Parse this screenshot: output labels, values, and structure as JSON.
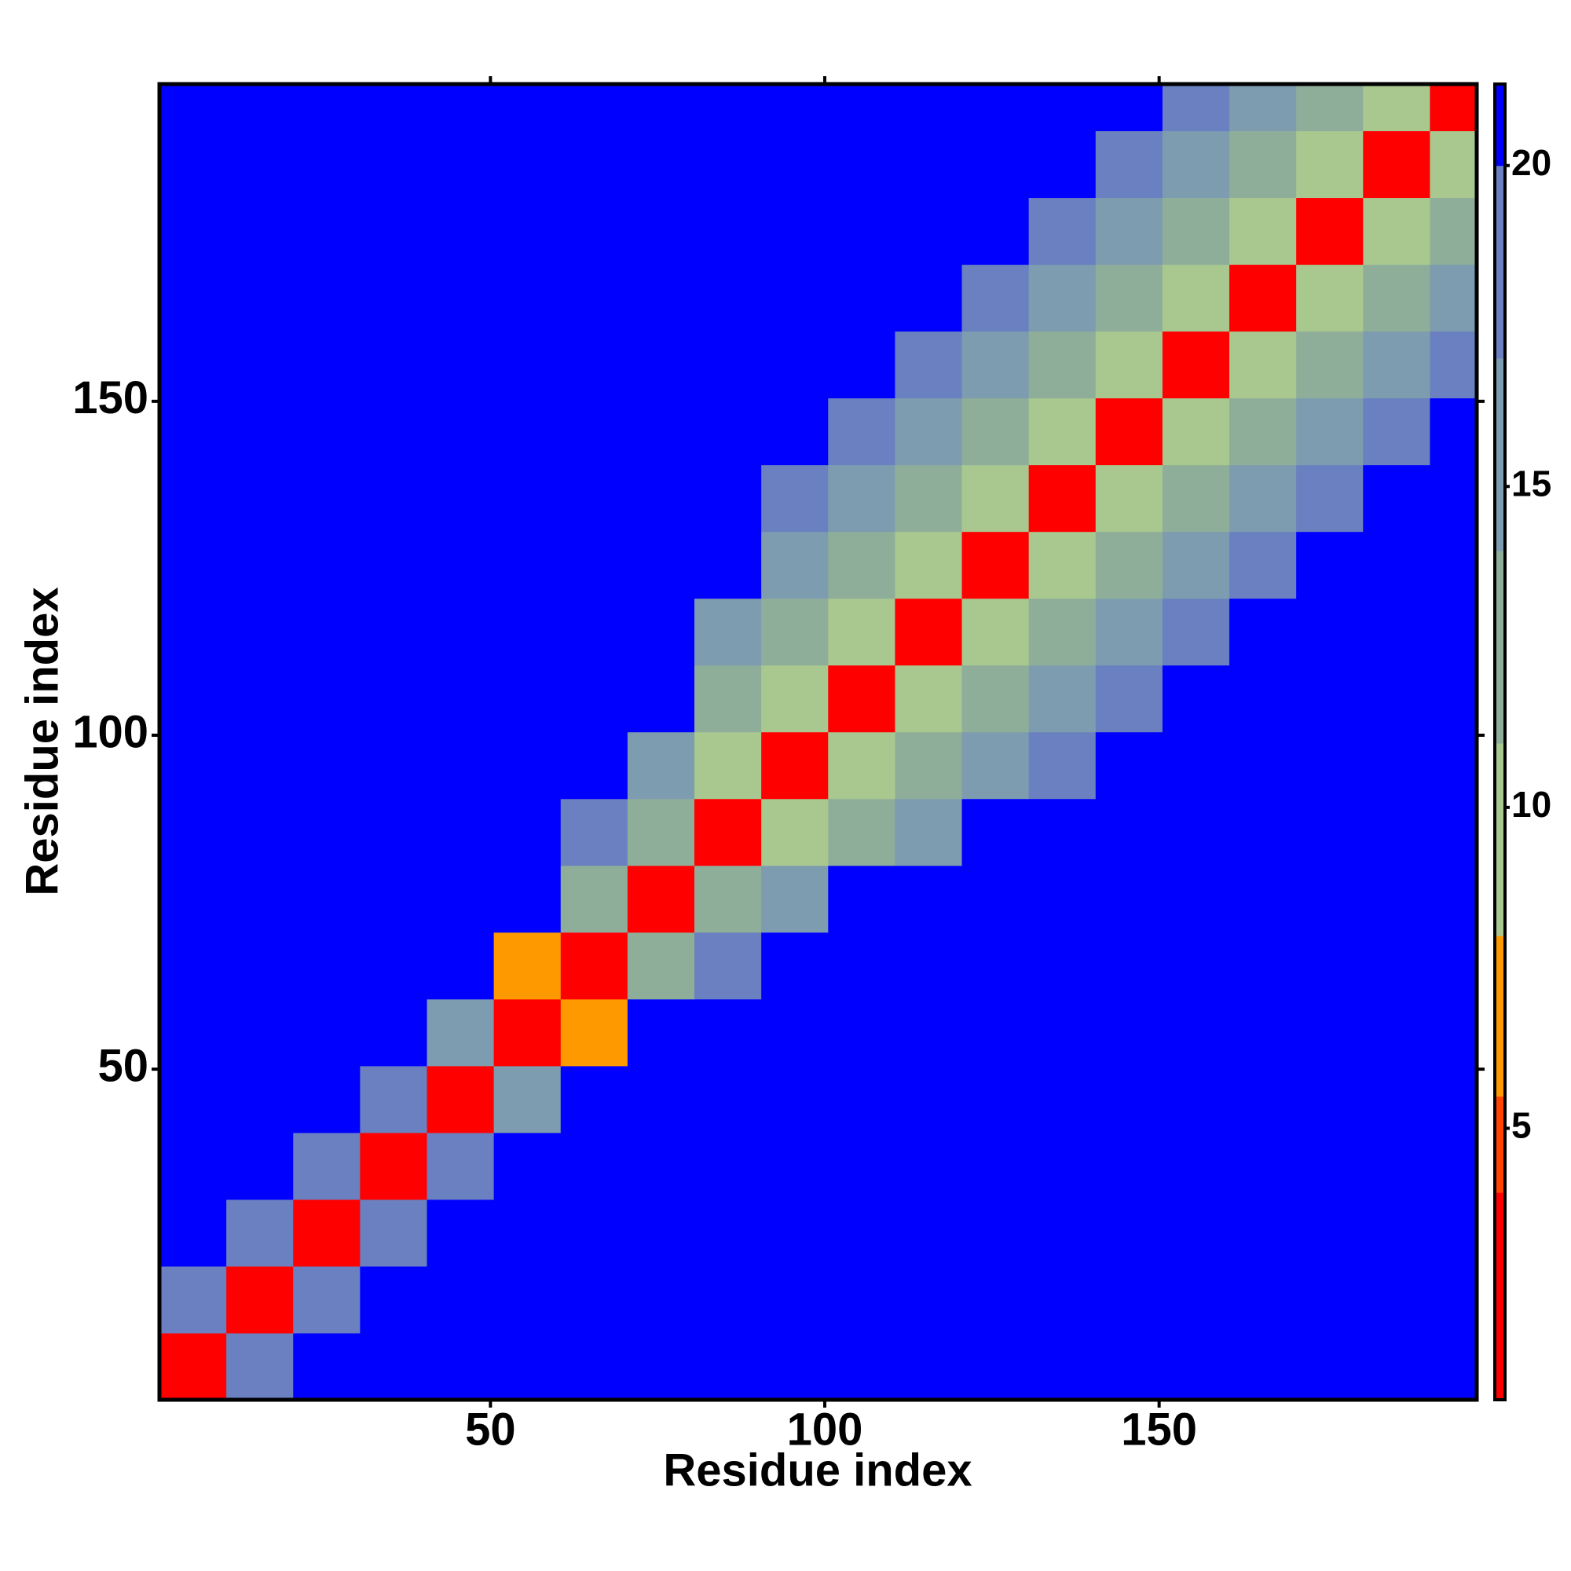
{
  "chart_data": {
    "type": "heatmap",
    "x_label": "Residue index",
    "y_label": "Residue index",
    "xlim": [
      0.5,
      197.5
    ],
    "ylim": [
      0.5,
      197.5
    ],
    "xticks": [
      50,
      100,
      150
    ],
    "yticks": [
      50,
      100,
      150
    ],
    "xbins": [
      0.5,
      10.5,
      20.5,
      30.5,
      40.5,
      50.5,
      60.5,
      70.5,
      80.5,
      90.5,
      100.5,
      110.5,
      120.5,
      130.5,
      140.5,
      150.5,
      160.5,
      170.5,
      180.5,
      190.5,
      197.5
    ],
    "ybins": [
      0.5,
      10.5,
      20.5,
      30.5,
      40.5,
      50.5,
      60.5,
      70.5,
      80.5,
      90.5,
      100.5,
      110.5,
      120.5,
      130.5,
      140.5,
      150.5,
      160.5,
      170.5,
      180.5,
      190.5,
      197.5
    ],
    "z": [
      [
        4,
        18,
        21,
        21,
        21,
        21,
        21,
        21,
        21,
        21,
        21,
        21,
        21,
        21,
        21,
        21,
        21,
        21,
        21,
        21
      ],
      [
        18,
        4,
        18,
        21,
        21,
        21,
        21,
        21,
        21,
        21,
        21,
        21,
        21,
        21,
        21,
        21,
        21,
        21,
        21,
        21
      ],
      [
        21,
        18,
        4,
        18,
        21,
        21,
        21,
        21,
        21,
        21,
        21,
        21,
        21,
        21,
        21,
        21,
        21,
        21,
        21,
        21
      ],
      [
        21,
        21,
        18,
        4,
        18,
        21,
        21,
        21,
        21,
        21,
        21,
        21,
        21,
        21,
        21,
        21,
        21,
        21,
        21,
        21
      ],
      [
        21,
        21,
        21,
        18,
        4,
        15,
        21,
        21,
        21,
        21,
        21,
        21,
        21,
        21,
        21,
        21,
        21,
        21,
        21,
        21
      ],
      [
        21,
        21,
        21,
        21,
        15,
        4,
        8,
        21,
        21,
        21,
        21,
        21,
        21,
        21,
        21,
        21,
        21,
        21,
        21,
        21
      ],
      [
        21,
        21,
        21,
        21,
        21,
        8,
        4,
        14,
        18,
        21,
        21,
        21,
        21,
        21,
        21,
        21,
        21,
        21,
        21,
        21
      ],
      [
        21,
        21,
        21,
        21,
        21,
        21,
        14,
        4,
        12,
        16,
        21,
        21,
        21,
        21,
        21,
        21,
        21,
        21,
        21,
        21
      ],
      [
        21,
        21,
        21,
        21,
        21,
        21,
        18,
        12,
        4,
        10,
        14,
        17,
        21,
        21,
        21,
        21,
        21,
        21,
        21,
        21
      ],
      [
        21,
        21,
        21,
        21,
        21,
        21,
        21,
        16,
        10,
        4,
        10,
        14,
        17,
        19,
        21,
        21,
        21,
        21,
        21,
        21
      ],
      [
        21,
        21,
        21,
        21,
        21,
        21,
        21,
        21,
        14,
        10,
        4,
        10,
        14,
        17,
        19,
        21,
        21,
        21,
        21,
        21
      ],
      [
        21,
        21,
        21,
        21,
        21,
        21,
        21,
        21,
        17,
        14,
        10,
        4,
        10,
        14,
        17,
        19,
        21,
        21,
        21,
        21
      ],
      [
        21,
        21,
        21,
        21,
        21,
        21,
        21,
        21,
        21,
        17,
        14,
        10,
        4,
        10,
        14,
        17,
        19,
        21,
        21,
        21
      ],
      [
        21,
        21,
        21,
        21,
        21,
        21,
        21,
        21,
        21,
        19,
        17,
        14,
        10,
        4,
        10,
        14,
        17,
        19,
        21,
        21
      ],
      [
        21,
        21,
        21,
        21,
        21,
        21,
        21,
        21,
        21,
        21,
        19,
        17,
        14,
        10,
        4,
        10,
        14,
        17,
        19,
        21
      ],
      [
        21,
        21,
        21,
        21,
        21,
        21,
        21,
        21,
        21,
        21,
        21,
        19,
        17,
        14,
        10,
        4,
        10,
        14,
        17,
        19
      ],
      [
        21,
        21,
        21,
        21,
        21,
        21,
        21,
        21,
        21,
        21,
        21,
        21,
        19,
        17,
        14,
        10,
        4,
        10,
        14,
        17
      ],
      [
        21,
        21,
        21,
        21,
        21,
        21,
        21,
        21,
        21,
        21,
        21,
        21,
        21,
        19,
        17,
        14,
        10,
        4,
        10,
        14
      ],
      [
        21,
        21,
        21,
        21,
        21,
        21,
        21,
        21,
        21,
        21,
        21,
        21,
        21,
        21,
        19,
        17,
        14,
        10,
        4,
        10
      ],
      [
        21,
        21,
        21,
        21,
        21,
        21,
        21,
        21,
        21,
        21,
        21,
        21,
        21,
        21,
        21,
        19,
        17,
        14,
        10,
        4
      ]
    ],
    "colorbar": {
      "levels": [
        0.77,
        4,
        5.5,
        8,
        11,
        14,
        17,
        20,
        21.27
      ],
      "colors": [
        "#ff0000",
        "#ff4500",
        "#ff9900",
        "#a8c890",
        "#8fae9a",
        "#7d9cb0",
        "#6a80c0",
        "#0000ff"
      ],
      "ticks": [
        5,
        10,
        15,
        20
      ]
    }
  }
}
